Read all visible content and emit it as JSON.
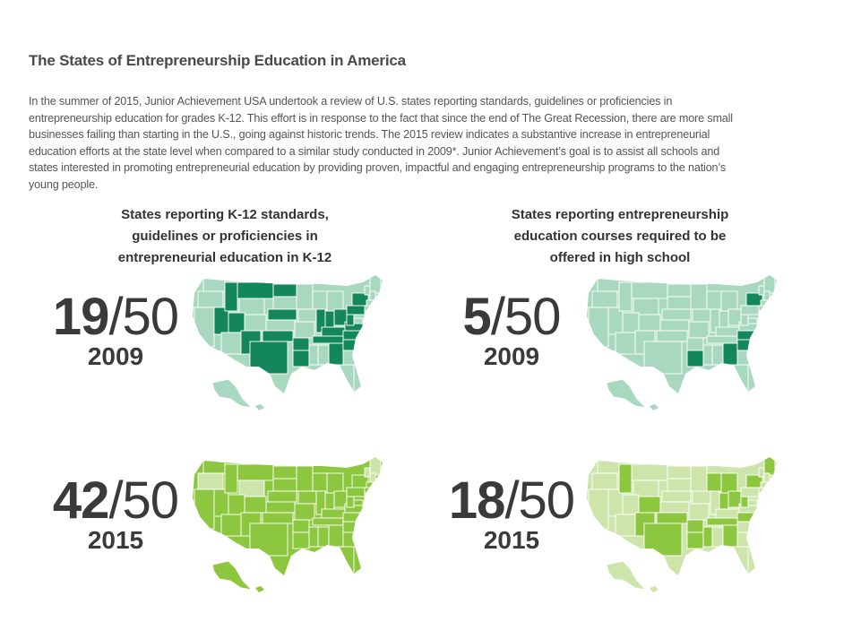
{
  "document": {
    "title": "The States of Entrepreneurship Education in America",
    "intro_lines": [
      "In the summer of 2015, Junior Achievement USA undertook a review of U.S. states reporting standards, guidelines or proficiencies in",
      "entrepreneurship education for grades K-12. This effort is in response to the fact that since the end of The Great Recession, there are more small",
      "businesses failing than starting in the U.S., going against historic trends. The 2015 review indicates a substantive increase in entrepreneurial",
      "education efforts at the state level when compared to a similar study conducted in 2009*. Junior Achievement’s goal is to assist all schools and",
      "states interested in promoting entrepreneurial education by providing proven, impactful and engaging entrepreneurship programs to the nation’s",
      "young people."
    ]
  },
  "left_panel": {
    "heading_lines": [
      "States reporting K-12 standards,",
      "guidelines or proficiencies in",
      "entrepreneurial education in K-12"
    ],
    "stat_2009": {
      "count": "19",
      "denominator": "/50",
      "year": "2009"
    },
    "stat_2015": {
      "count": "42",
      "denominator": "/50",
      "year": "2015"
    }
  },
  "right_panel": {
    "heading_lines": [
      "States reporting entrepreneurship",
      "education courses required to be",
      "offered in high school"
    ],
    "stat_2009": {
      "count": "5",
      "denominator": "/50",
      "year": "2009"
    },
    "stat_2015": {
      "count": "18",
      "denominator": "/50",
      "year": "2015"
    }
  },
  "colors": {
    "map_2009_base": "#a9d8c0",
    "map_2009_highlight": "#14875a",
    "map_2015_base": "#cde5aa",
    "map_2015_highlight": "#8dc63f",
    "state_border": "#ffffff"
  }
}
